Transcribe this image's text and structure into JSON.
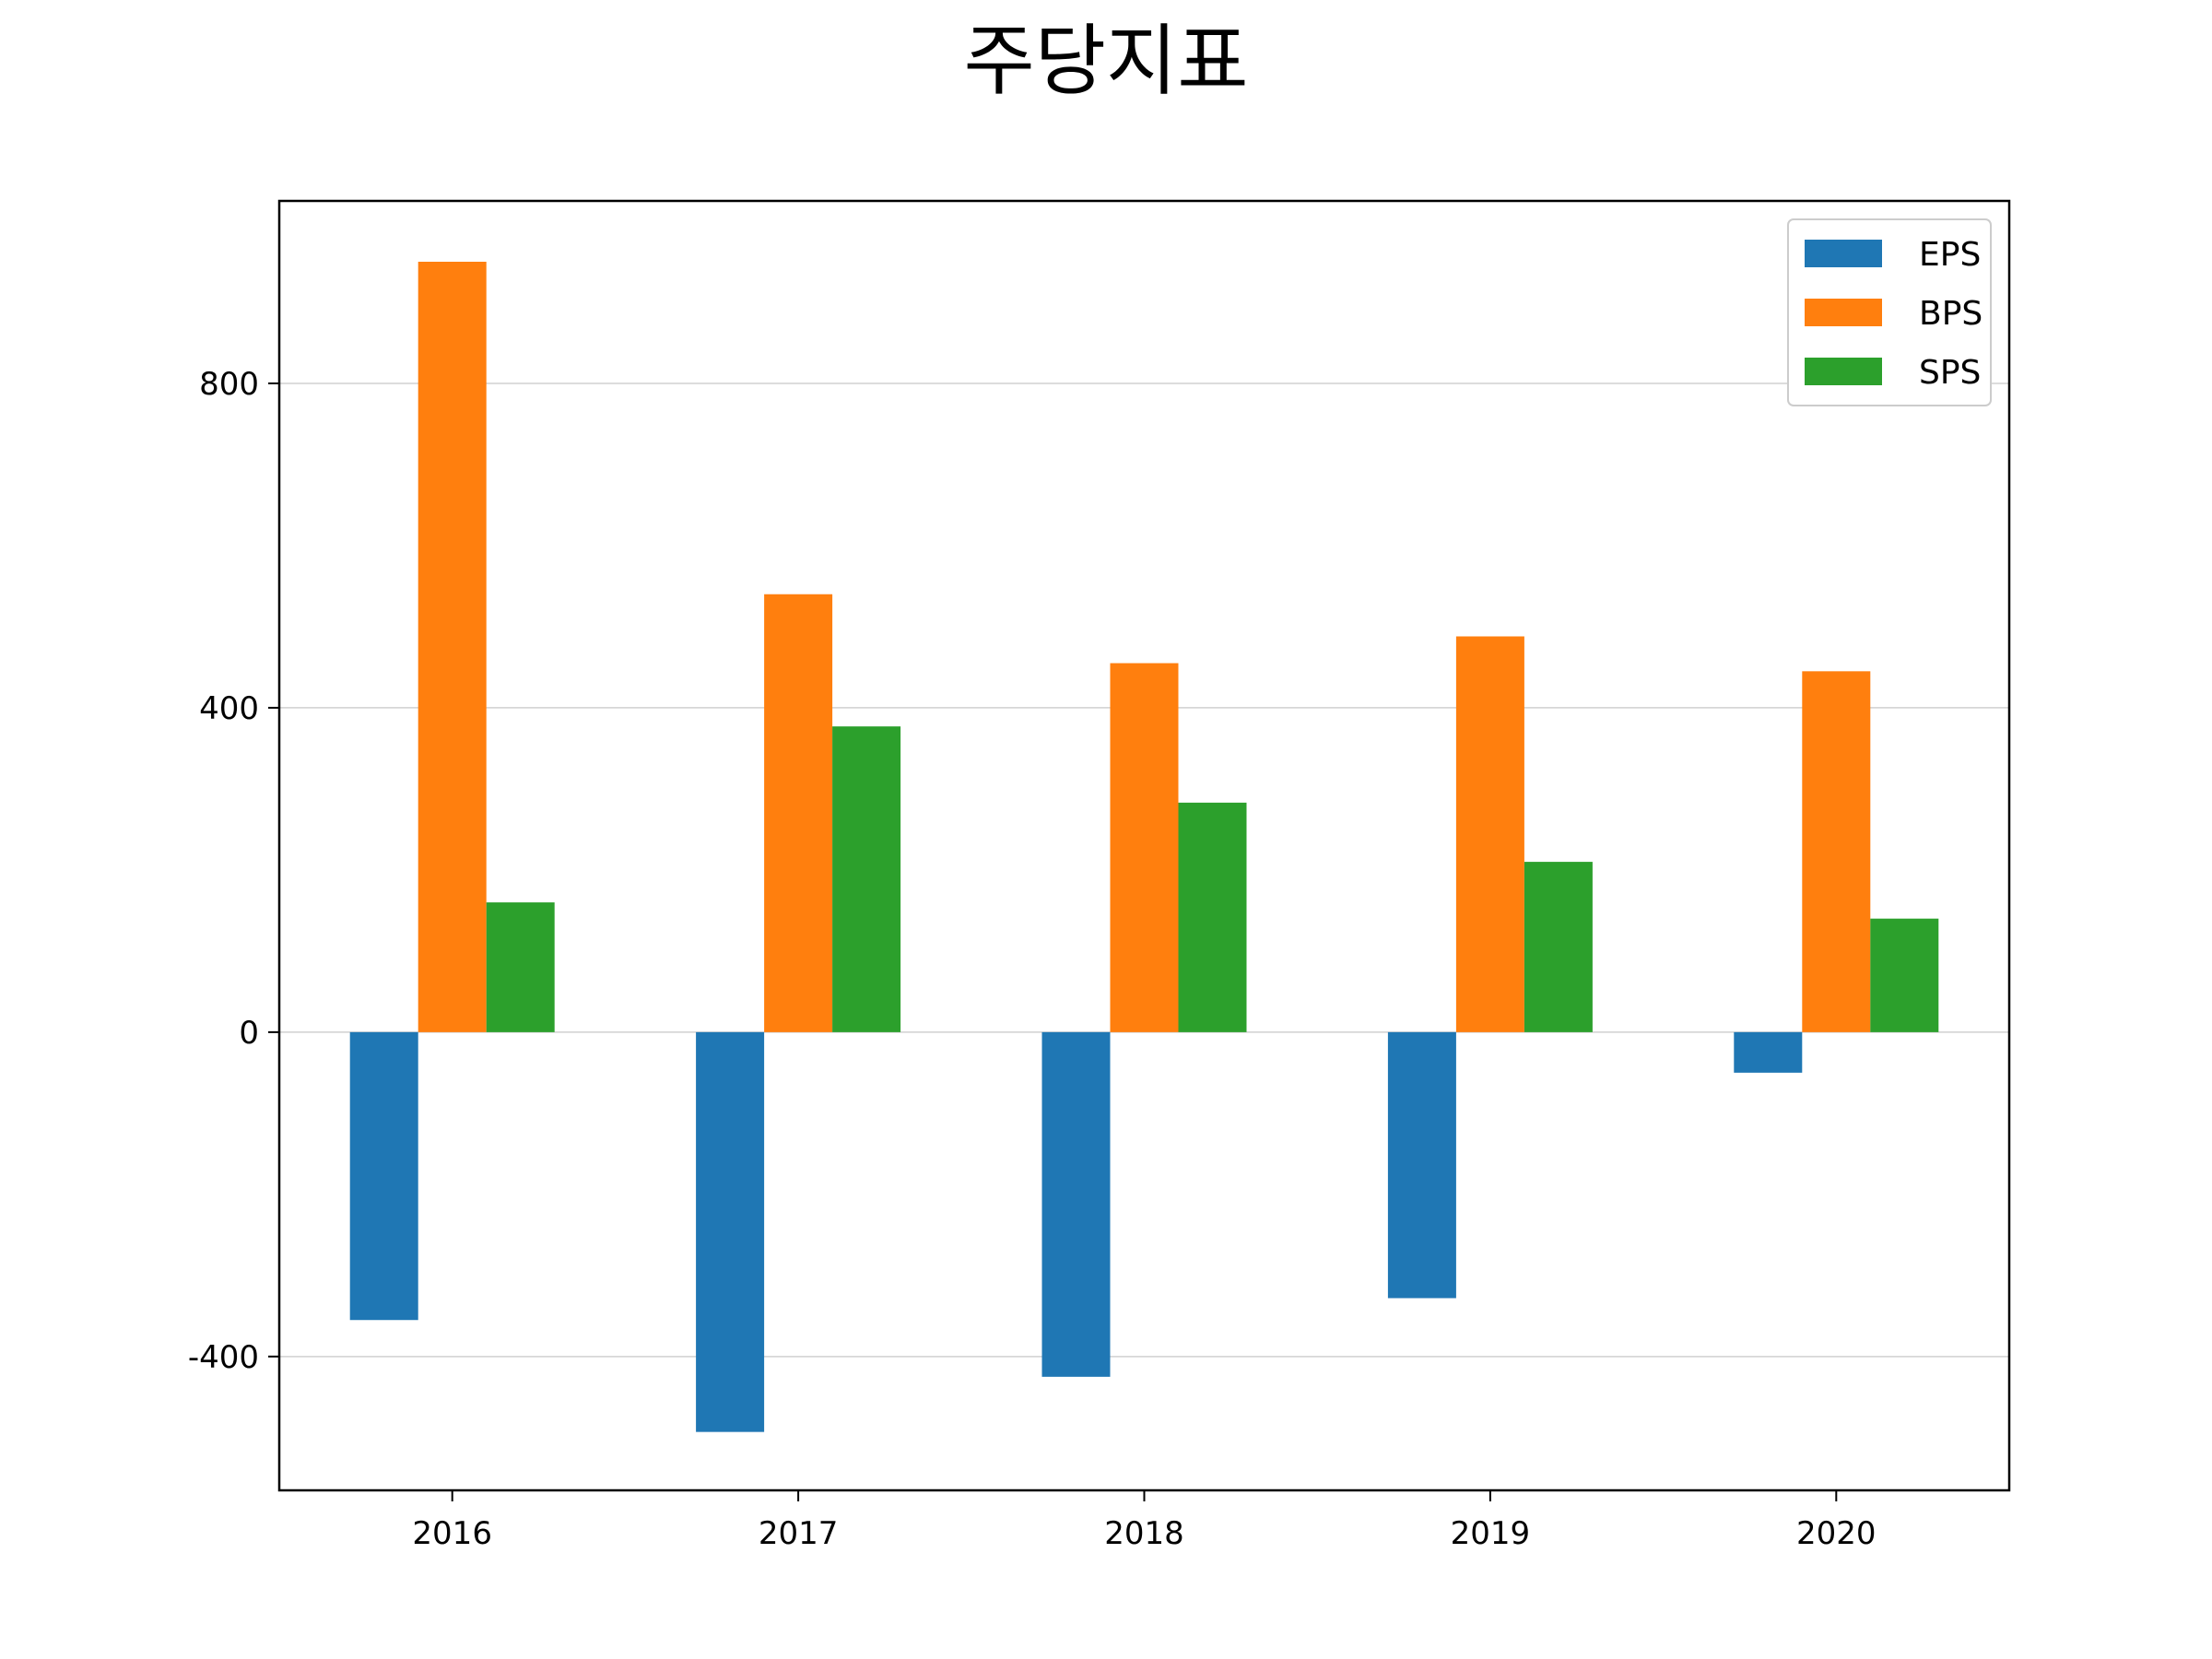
{
  "chart_data": {
    "type": "bar",
    "title": "주당지표",
    "xlabel": "",
    "ylabel": "",
    "categories": [
      "2016",
      "2017",
      "2018",
      "2019",
      "2020"
    ],
    "series": [
      {
        "name": "EPS",
        "color": "#1f77b4",
        "values": [
          -355,
          -493,
          -425,
          -328,
          -50
        ]
      },
      {
        "name": "BPS",
        "color": "#ff7f0e",
        "values": [
          950,
          540,
          455,
          488,
          445
        ]
      },
      {
        "name": "SPS",
        "color": "#2ca02c",
        "values": [
          160,
          377,
          283,
          210,
          140
        ]
      }
    ],
    "ylim": [
      -565,
      1025
    ],
    "yticks": [
      -400,
      0,
      400,
      800
    ],
    "grid": "y",
    "legend": "top-right"
  }
}
